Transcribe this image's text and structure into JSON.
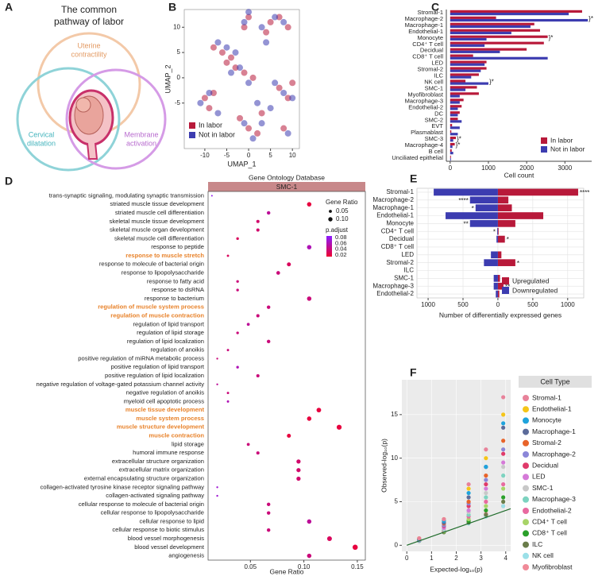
{
  "diagram": {
    "label": "A",
    "title_lines": [
      "The common",
      "pathway of labor"
    ],
    "sets": [
      {
        "lines": [
          "Uterine",
          "contractility"
        ],
        "color": "#f3c9a8"
      },
      {
        "lines": [
          "Cervical",
          "dilatation"
        ],
        "color": "#8fd3d8"
      },
      {
        "lines": [
          "Membrane",
          "activation"
        ],
        "color": "#d59be6"
      }
    ]
  },
  "chart_data": [
    {
      "type": "scatter",
      "label": "B",
      "x_label": "UMAP_1",
      "y_label": "UMAP_2",
      "xlim": [
        -14.7,
        11.6
      ],
      "ylim": [
        -14,
        13.5
      ],
      "xticks": [
        -10,
        -5,
        0,
        5,
        10
      ],
      "yticks": [
        -5,
        0,
        5,
        10
      ],
      "series": [
        {
          "name": "In labor",
          "color": "#b8193a",
          "x": [
            5,
            7,
            9,
            4,
            0,
            -1,
            -8,
            -6,
            -4,
            -3,
            -1,
            1,
            -10,
            -9,
            -8,
            -2,
            0,
            2,
            7,
            9,
            8,
            10,
            -5,
            3
          ],
          "values": [
            11,
            12,
            10,
            9,
            12,
            10,
            6,
            5,
            4,
            2,
            1,
            0,
            -4,
            -6,
            -3,
            -8,
            -10,
            -11,
            -2,
            -4,
            -10,
            -1,
            3,
            -7
          ]
        },
        {
          "name": "Not in labor",
          "color": "#3c3cb0",
          "x": [
            6,
            8,
            3,
            -1,
            0,
            -7,
            -5,
            -3,
            -2,
            0,
            -11,
            -9,
            -7,
            -1,
            1,
            3,
            6,
            8,
            10,
            9,
            4,
            -4,
            2,
            5
          ],
          "values": [
            12,
            11,
            10,
            11,
            13,
            7,
            6,
            5,
            2,
            -1,
            -5,
            -3,
            -7,
            -9,
            -12,
            -9,
            -1,
            -3,
            -4,
            -11,
            7,
            1,
            -5,
            -6
          ]
        }
      ]
    },
    {
      "type": "hbar",
      "label": "C",
      "x_label": "Cell count",
      "xlim": [
        -100,
        3700
      ],
      "xticks": [
        0,
        1000,
        2000,
        3000
      ],
      "categories": [
        "Stromal-1",
        "Macrophage-2",
        "Macrophage-1",
        "Endothelial-1",
        "Monocyte",
        "CD4⁺ T cell",
        "Decidual",
        "CD8⁺ T cell",
        "LED",
        "Stromal-2",
        "ILC",
        "NK cell",
        "SMC-1",
        "Myofibroblast",
        "Macrophage-3",
        "Endothelial-2",
        "DC",
        "SMC-2",
        "EVT",
        "Plasmablast",
        "SMC-3",
        "Macrophage-4",
        "B cell",
        "Unciliated epithelial"
      ],
      "series": [
        {
          "name": "In labor",
          "color": "#b8193a",
          "values": [
            3450,
            1200,
            2200,
            2350,
            2550,
            2450,
            2000,
            600,
            950,
            950,
            750,
            400,
            700,
            750,
            350,
            300,
            250,
            200,
            50,
            30,
            150,
            120,
            40,
            20
          ]
        },
        {
          "name": "Not in labor",
          "color": "#3c3cb0",
          "values": [
            3100,
            3600,
            2100,
            1600,
            950,
            900,
            1300,
            2550,
            900,
            800,
            550,
            1000,
            400,
            250,
            250,
            200,
            200,
            300,
            250,
            200,
            80,
            60,
            80,
            20
          ]
        }
      ],
      "annotations": [
        {
          "index": 1,
          "text": "}*"
        },
        {
          "index": 4,
          "text": "}*"
        },
        {
          "index": 11,
          "text": "}*"
        },
        {
          "index": 20,
          "text": "}*"
        },
        {
          "index": 21,
          "text": "}*"
        }
      ]
    },
    {
      "type": "dot",
      "label": "D",
      "title": "Gene Ontology Database",
      "facet": "SMC-1",
      "x_label": "Gene Ratio",
      "xlim": [
        0.0104,
        0.1575
      ],
      "xticks": [
        0.05,
        {
          "value": 0.1,
          "label": "0.10"
        },
        0.15
      ],
      "size_title": "Gene Ratio",
      "size_ticks": [
        0.05,
        {
          "value": 0.1,
          "label": "0.10"
        }
      ],
      "color_title": "p.adjust",
      "clim": [
        0.015,
        0.085
      ],
      "cticks": [
        0.08,
        0.06,
        0.04,
        0.02
      ],
      "color_scale": [
        "#ee0030",
        "#8a1cff"
      ],
      "highlight_color": "#e8822a",
      "highlight": [
        7,
        13,
        14,
        25,
        26,
        27,
        28
      ],
      "categories": [
        "trans-synaptic signaling, modulating synaptic transmission",
        "striated muscle tissue development",
        "striated muscle cell differentiation",
        "skeletal muscle tissue development",
        "skeletal muscle organ development",
        "skeletal muscle cell differentiation",
        "response to peptide",
        "response to muscle stretch",
        "response to molecule of bacterial origin",
        "response to lipopolysaccharide",
        "response to fatty acid",
        "response to dsRNA",
        "response to bacterium",
        "regulation of muscle system process",
        "regulation of muscle contraction",
        "regulation of lipid transport",
        "regulation of lipid storage",
        "regulation of lipid localization",
        "regulation of anoikis",
        "positive regulation of miRNA metabolic process",
        "positive regulation of lipid transport",
        "positive regulation of lipid localization",
        "negative regulation of voltage-gated potassium channel activity",
        "negative regulation of anoikis",
        "myeloid cell apoptotic process",
        "muscle tissue development",
        "muscle system process",
        "muscle structure development",
        "muscle contraction",
        "lipid storage",
        "humoral immune response",
        "extracellular structure organization",
        "extracellular matrix organization",
        "external encapsulating structure organization",
        "collagen-activated tyrosine kinase receptor signaling pathway",
        "collagen-activated signaling pathway",
        "cellular response to molecule of bacterial origin",
        "cellular response to lipopolysaccharide",
        "cellular response to lipid",
        "cellular response to biotic stimulus",
        "blood vessel morphogenesis",
        "blood vessel development",
        "angiogenesis"
      ],
      "values": [
        0.014,
        0.105,
        0.067,
        0.057,
        0.057,
        0.038,
        0.105,
        0.029,
        0.086,
        0.076,
        0.038,
        0.038,
        0.105,
        0.067,
        0.057,
        0.048,
        0.038,
        0.067,
        0.029,
        0.019,
        0.038,
        0.057,
        0.019,
        0.029,
        0.029,
        0.114,
        0.105,
        0.133,
        0.086,
        0.048,
        0.057,
        0.095,
        0.095,
        0.095,
        0.019,
        0.019,
        0.067,
        0.067,
        0.105,
        0.067,
        0.124,
        0.148,
        0.105
      ],
      "p_adjust": [
        0.08,
        0.02,
        0.05,
        0.035,
        0.035,
        0.03,
        0.06,
        0.03,
        0.03,
        0.04,
        0.04,
        0.04,
        0.04,
        0.04,
        0.04,
        0.05,
        0.04,
        0.04,
        0.04,
        0.04,
        0.06,
        0.04,
        0.05,
        0.04,
        0.06,
        0.02,
        0.02,
        0.02,
        0.02,
        0.04,
        0.04,
        0.035,
        0.035,
        0.035,
        0.07,
        0.07,
        0.04,
        0.04,
        0.05,
        0.04,
        0.03,
        0.02,
        0.04
      ]
    },
    {
      "type": "diverging",
      "label": "E",
      "x_label": "Number of differentially expressed genes",
      "xlim": [
        -1160,
        1230
      ],
      "xticks": [
        {
          "value": -1000,
          "label": "1000"
        },
        {
          "value": -500,
          "label": "500"
        },
        0,
        500,
        1000
      ],
      "categories": [
        "Stromal-1",
        "Macrophage-2",
        "Macrophage-1",
        "Endothelial-1",
        "Monocyte",
        "CD4⁺ T cell",
        "Decidual",
        "CD8⁺ T cell",
        "LED",
        "Stromal-2",
        "ILC",
        "SMC-1",
        "Macrophage-3",
        "Endothelial-2"
      ],
      "series": [
        {
          "name": "Upregulated",
          "color": "#b8193a",
          "values": [
            1150,
            150,
            200,
            650,
            250,
            10,
            100,
            0,
            50,
            250,
            0,
            30,
            80,
            20
          ]
        },
        {
          "name": "Downregulated",
          "color": "#3c3cb0",
          "values": [
            -920,
            -400,
            -320,
            -750,
            -400,
            -10,
            -20,
            0,
            -100,
            -200,
            0,
            -60,
            -60,
            -30
          ]
        }
      ],
      "annotations": [
        {
          "index": 0,
          "text": "****",
          "side": "right"
        },
        {
          "index": 1,
          "text": "****",
          "side": "left"
        },
        {
          "index": 2,
          "text": "*",
          "side": "left"
        },
        {
          "index": 4,
          "text": "**",
          "side": "left"
        },
        {
          "index": 5,
          "text": "*",
          "side": "left"
        },
        {
          "index": 6,
          "text": "*",
          "side": "right"
        },
        {
          "index": 9,
          "text": "*",
          "side": "right"
        },
        {
          "index": 12,
          "text": "**",
          "side": "right"
        }
      ]
    },
    {
      "type": "qq",
      "label": "F",
      "x_label": "Expected-log₁₀(p)",
      "y_label": "Observed-log₁₀(p)",
      "legend_title": "Cell Type",
      "xlim": [
        -0.2,
        4.2
      ],
      "ylim": [
        -0.7,
        19
      ],
      "xticks": [
        0,
        1,
        2,
        3,
        4
      ],
      "yticks": [
        0,
        5,
        10,
        15
      ],
      "grid": true,
      "x": [
        0.5,
        1.5,
        2.5,
        3.2,
        3.9
      ],
      "series": [
        {
          "name": "Stromal-1",
          "color": "#e8829a",
          "values": [
            0.8,
            3,
            7,
            11,
            17
          ]
        },
        {
          "name": "Endothelial-1",
          "color": "#f5c518",
          "values": [
            0.8,
            3,
            6.5,
            10,
            15
          ]
        },
        {
          "name": "Monocyte",
          "color": "#1fa3dc",
          "values": [
            0.7,
            2.8,
            6,
            9,
            14
          ]
        },
        {
          "name": "Macrophage-1",
          "color": "#5c6b9a",
          "values": [
            0.7,
            2.6,
            5.5,
            9,
            13.5
          ]
        },
        {
          "name": "Stromal-2",
          "color": "#e8642a",
          "values": [
            0.7,
            2.5,
            5,
            8,
            12
          ]
        },
        {
          "name": "Macrophage-2",
          "color": "#8b86d8",
          "values": [
            0.6,
            2.3,
            4.8,
            7.5,
            11
          ]
        },
        {
          "name": "Decidual",
          "color": "#e03a6a",
          "values": [
            0.6,
            2.2,
            4.5,
            7,
            10.5
          ]
        },
        {
          "name": "LED",
          "color": "#d57ad8",
          "values": [
            0.6,
            2,
            4,
            6.5,
            9.5
          ]
        },
        {
          "name": "SMC-1",
          "color": "#c8c8c8",
          "values": [
            0.6,
            1.9,
            3.8,
            6,
            9
          ]
        },
        {
          "name": "Macrophage-3",
          "color": "#7dd3c0",
          "values": [
            0.5,
            1.8,
            3.5,
            5.5,
            8
          ]
        },
        {
          "name": "Endothelial-2",
          "color": "#e86aa0",
          "values": [
            0.5,
            1.7,
            3.3,
            5,
            7
          ]
        },
        {
          "name": "CD4⁺ T cell",
          "color": "#a8d468",
          "values": [
            0.5,
            1.6,
            3,
            4.5,
            6.5
          ]
        },
        {
          "name": "CD8⁺ T cell",
          "color": "#2aa02a",
          "values": [
            0.5,
            1.6,
            2.8,
            4,
            5.5
          ]
        },
        {
          "name": "ILC",
          "color": "#6a7d4a",
          "values": [
            0.5,
            1.5,
            2.6,
            3.5,
            5
          ]
        },
        {
          "name": "NK cell",
          "color": "#9be0e8",
          "values": [
            0.5,
            1.5,
            2.5,
            3.3,
            4.5
          ]
        },
        {
          "name": "Myofibroblast",
          "color": "#f08a98",
          "values": [
            0.5,
            1.6,
            2.7,
            3.6,
            4.5
          ]
        }
      ]
    }
  ]
}
